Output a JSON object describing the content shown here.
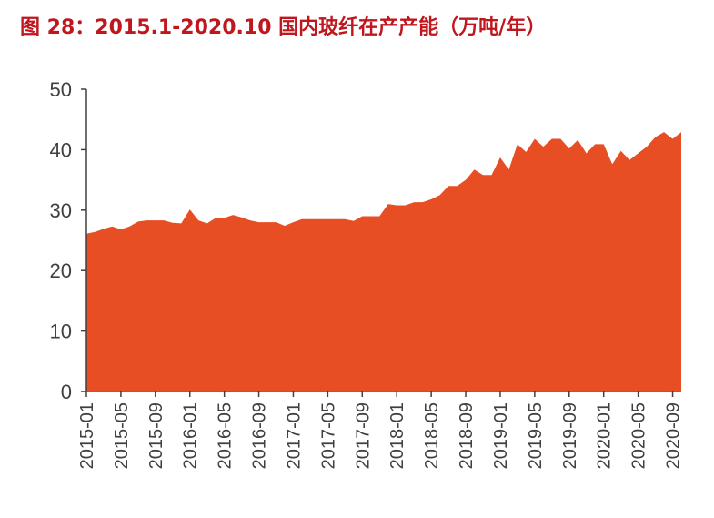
{
  "figure": {
    "title": "图 28：2015.1-2020.10 国内玻纤在产产能（万吨/年）"
  },
  "colors": {
    "title": "#c0161d",
    "area_fill": "#e84e24",
    "axis": "#404040"
  },
  "chart_data": {
    "type": "area",
    "title": "图 28：2015.1-2020.10 国内玻纤在产产能（万吨/年）",
    "xlabel": "",
    "ylabel": "",
    "ylim": [
      0,
      50
    ],
    "yticks": [
      0,
      10,
      20,
      30,
      40,
      50
    ],
    "grid": false,
    "legend": "none",
    "x_tick_labels": [
      "2015-01",
      "2015-05",
      "2015-09",
      "2016-01",
      "2016-05",
      "2016-09",
      "2017-01",
      "2017-05",
      "2017-09",
      "2018-01",
      "2018-05",
      "2018-09",
      "2019-01",
      "2019-05",
      "2019-09",
      "2020-01",
      "2020-05",
      "2020-09"
    ],
    "series": [
      {
        "values": [
          26.1,
          26.4,
          26.9,
          27.3,
          26.8,
          27.3,
          28.1,
          28.3,
          28.3,
          28.3,
          27.9,
          27.8,
          30.1,
          28.3,
          27.8,
          28.7,
          28.7,
          29.2,
          28.8,
          28.3,
          28.0,
          28.0,
          28.0,
          27.4,
          28.0,
          28.5,
          28.5,
          28.5,
          28.5,
          28.5,
          28.5,
          28.2,
          29.0,
          29.0,
          29.0,
          31.0,
          30.8,
          30.8,
          31.3,
          31.3,
          31.8,
          32.5,
          34.0,
          34.0,
          35.0,
          36.7,
          35.8,
          35.8,
          38.7,
          36.7,
          40.9,
          39.6,
          41.8,
          40.5,
          41.8,
          41.8,
          40.2,
          41.6,
          39.4,
          40.9,
          40.9,
          37.6,
          39.8,
          38.3,
          39.4,
          40.5,
          42.1,
          42.9,
          41.8,
          42.9
        ]
      }
    ]
  }
}
